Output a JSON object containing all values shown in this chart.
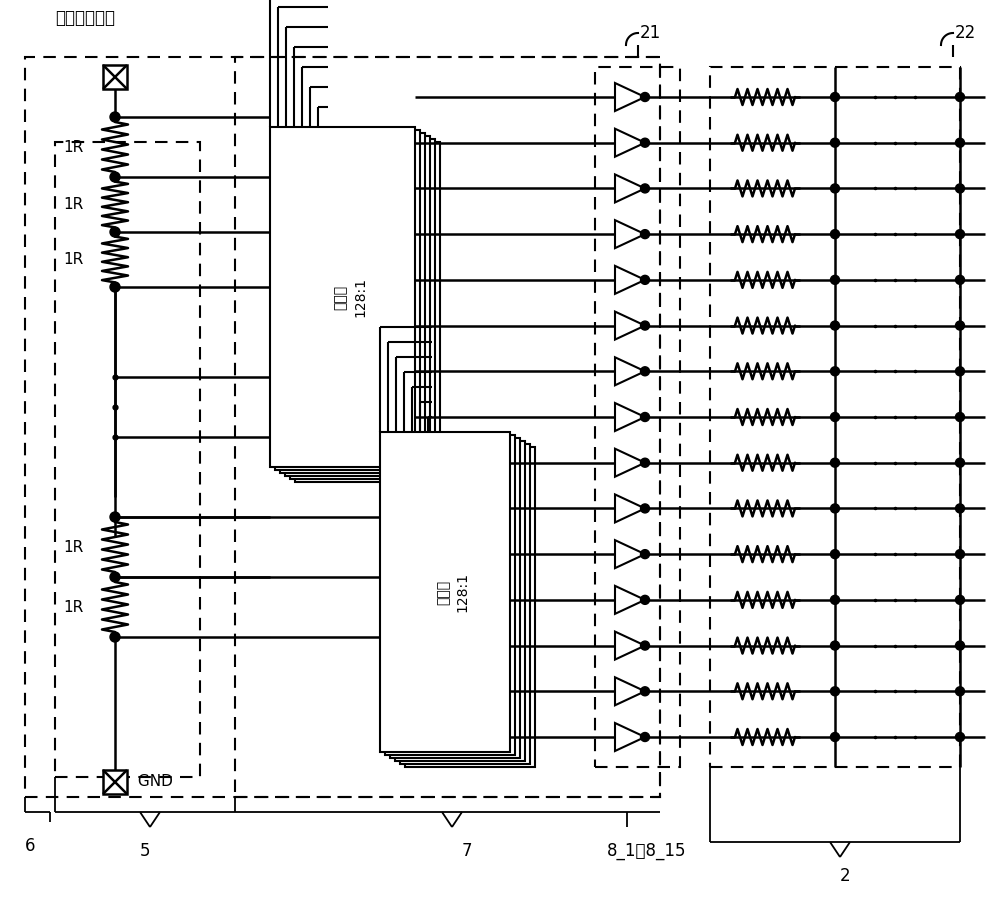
{
  "bg_color": "#ffffff",
  "label_gray": "灰度基准电压",
  "label_mux": "选择器\n128:1",
  "label_gnd": "GND",
  "label_6": "6",
  "label_5": "5",
  "label_7": "7",
  "label_21": "21",
  "label_22": "22",
  "label_2": "2",
  "label_8": "8_1～8_15",
  "n_lines": 15,
  "figw": 10.0,
  "figh": 8.97
}
